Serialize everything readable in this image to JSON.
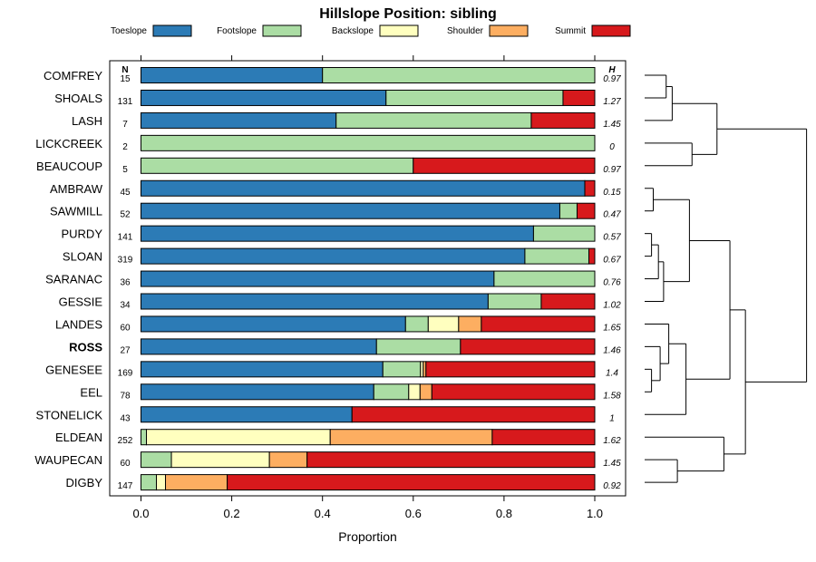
{
  "chart_data": {
    "type": "bar",
    "stacked": true,
    "orientation": "horizontal",
    "title": "Hillslope Position: sibling",
    "xlabel": "Proportion",
    "ylabel": "",
    "xlim": [
      0,
      1
    ],
    "xticks": [
      "0.0",
      "0.2",
      "0.4",
      "0.6",
      "0.8",
      "1.0"
    ],
    "n_header": "N",
    "h_header": "H",
    "legend_position": "top",
    "categories_legend": [
      {
        "name": "Toeslope",
        "color": "#2c7bb6"
      },
      {
        "name": "Footslope",
        "color": "#abdda4"
      },
      {
        "name": "Backslope",
        "color": "#ffffbf"
      },
      {
        "name": "Shoulder",
        "color": "#fdae61"
      },
      {
        "name": "Summit",
        "color": "#d7191c"
      }
    ],
    "rows": [
      {
        "name": "COMFREY",
        "n": "15",
        "h": "0.97",
        "values": [
          0.4,
          0.6,
          0,
          0,
          0
        ]
      },
      {
        "name": "SHOALS",
        "n": "131",
        "h": "1.27",
        "values": [
          0.54,
          0.39,
          0,
          0,
          0.07
        ]
      },
      {
        "name": "LASH",
        "n": "7",
        "h": "1.45",
        "values": [
          0.43,
          0.43,
          0,
          0,
          0.14
        ]
      },
      {
        "name": "LICKCREEK",
        "n": "2",
        "h": "0",
        "values": [
          0,
          1.0,
          0,
          0,
          0
        ]
      },
      {
        "name": "BEAUCOUP",
        "n": "5",
        "h": "0.97",
        "values": [
          0,
          0.6,
          0,
          0,
          0.4
        ]
      },
      {
        "name": "AMBRAW",
        "n": "45",
        "h": "0.15",
        "values": [
          0.978,
          0,
          0,
          0,
          0.022
        ]
      },
      {
        "name": "SAWMILL",
        "n": "52",
        "h": "0.47",
        "values": [
          0.923,
          0.038,
          0,
          0,
          0.039
        ]
      },
      {
        "name": "PURDY",
        "n": "141",
        "h": "0.57",
        "values": [
          0.865,
          0.135,
          0,
          0,
          0
        ]
      },
      {
        "name": "SLOAN",
        "n": "319",
        "h": "0.67",
        "values": [
          0.846,
          0.141,
          0,
          0,
          0.013
        ]
      },
      {
        "name": "SARANAC",
        "n": "36",
        "h": "0.76",
        "values": [
          0.778,
          0.222,
          0,
          0,
          0
        ]
      },
      {
        "name": "GESSIE",
        "n": "34",
        "h": "1.02",
        "values": [
          0.765,
          0.117,
          0,
          0,
          0.118
        ]
      },
      {
        "name": "LANDES",
        "n": "60",
        "h": "1.65",
        "values": [
          0.583,
          0.05,
          0.067,
          0.05,
          0.25
        ]
      },
      {
        "name": "ROSS",
        "n": "27",
        "h": "1.46",
        "values": [
          0.519,
          0.185,
          0,
          0,
          0.296
        ],
        "bold": true
      },
      {
        "name": "GENESEE",
        "n": "169",
        "h": "1.4",
        "values": [
          0.533,
          0.083,
          0.006,
          0.006,
          0.372
        ]
      },
      {
        "name": "EEL",
        "n": "78",
        "h": "1.58",
        "values": [
          0.513,
          0.077,
          0.025,
          0.026,
          0.359
        ]
      },
      {
        "name": "STONELICK",
        "n": "43",
        "h": "1",
        "values": [
          0.465,
          0,
          0,
          0,
          0.535
        ]
      },
      {
        "name": "ELDEAN",
        "n": "252",
        "h": "1.62",
        "values": [
          0,
          0.012,
          0.405,
          0.357,
          0.226
        ]
      },
      {
        "name": "WAUPECAN",
        "n": "60",
        "h": "1.45",
        "values": [
          0,
          0.067,
          0.216,
          0.083,
          0.634
        ]
      },
      {
        "name": "DIGBY",
        "n": "147",
        "h": "0.92",
        "values": [
          0,
          0.034,
          0.02,
          0.136,
          0.81
        ]
      }
    ],
    "dendrogram": {
      "merges": [
        {
          "left": 0,
          "right": 1,
          "height": 0.25
        },
        {
          "left": -1,
          "right": 2,
          "height": 0.32
        },
        {
          "left": 3,
          "right": 4,
          "height": 0.55
        },
        {
          "left": -2,
          "right": -3,
          "height": 0.84
        },
        {
          "left": 7,
          "right": 8,
          "height": 0.08
        },
        {
          "left": 9,
          "right": -5,
          "height": 0.16
        },
        {
          "left": 5,
          "right": 6,
          "height": 0.1
        },
        {
          "left": 10,
          "right": -6,
          "height": 0.22
        },
        {
          "left": -7,
          "right": -8,
          "height": 0.52
        },
        {
          "left": 13,
          "right": 14,
          "height": 0.08
        },
        {
          "left": 12,
          "right": -10,
          "height": 0.18
        },
        {
          "left": 11,
          "right": -11,
          "height": 0.28
        },
        {
          "left": -12,
          "right": 15,
          "height": 0.48
        },
        {
          "left": -9,
          "right": -13,
          "height": 0.99
        },
        {
          "left": 17,
          "right": 18,
          "height": 0.38
        },
        {
          "left": 16,
          "right": -15,
          "height": 0.92
        },
        {
          "left": -14,
          "right": -16,
          "height": 1.17
        },
        {
          "left": -4,
          "right": -17,
          "height": 1.88
        }
      ]
    }
  }
}
